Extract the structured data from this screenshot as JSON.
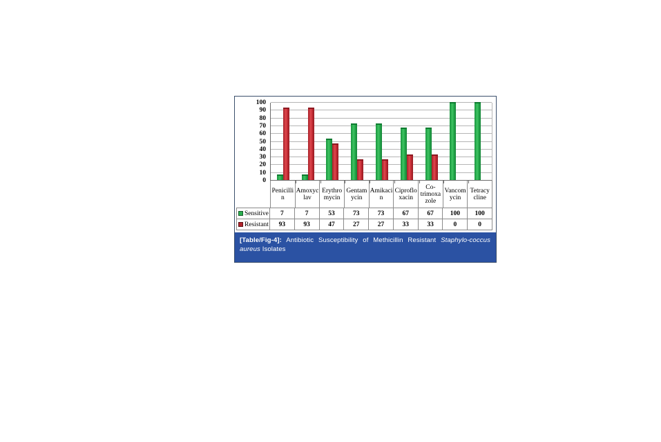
{
  "figure": {
    "caption": {
      "tag": "[Table/Fig-4]:",
      "text": "Antibiotic Susceptibility of Methicillin Resistant",
      "organism_italic": "Staphylo-coccus aureus",
      "suffix": "Isolates"
    },
    "colors": {
      "caption_background": "#2b52a3",
      "figure_border": "#3a4e6b",
      "sensitive_green": "#2bb050",
      "resistant_red": "#b2242c",
      "gridline_gray": "#b5b5b5"
    }
  },
  "chart_data": {
    "type": "bar",
    "title": "",
    "xlabel": "",
    "ylabel": "",
    "categories": [
      "Penicillin",
      "Amoxyclav",
      "Erythromycin",
      "Gentamycin",
      "Amikacin",
      "Ciprofloxacin",
      "Co-trimoxazole",
      "Vancomycin",
      "Tetracycline"
    ],
    "category_label_lines": [
      [
        "Penicilli",
        "n"
      ],
      [
        "Amoxyc",
        "lav"
      ],
      [
        "Erythro",
        "mycin"
      ],
      [
        "Gentam",
        "ycin"
      ],
      [
        "Amikaci",
        "n"
      ],
      [
        "Ciproflo",
        "xacin"
      ],
      [
        "Co-",
        "trimoxa",
        "zole"
      ],
      [
        "Vancom",
        "ycin"
      ],
      [
        "Tetracy",
        "cline"
      ]
    ],
    "series": [
      {
        "name": "Sensitive",
        "color": "#2bb050",
        "values": [
          7,
          7,
          53,
          73,
          73,
          67,
          67,
          100,
          100
        ]
      },
      {
        "name": "Resistant",
        "color": "#b2242c",
        "values": [
          93,
          93,
          47,
          27,
          27,
          33,
          33,
          0,
          0
        ]
      }
    ],
    "ylim": [
      0,
      100
    ],
    "yticks": [
      0,
      10,
      20,
      30,
      40,
      50,
      60,
      70,
      80,
      90,
      100
    ],
    "grid": "horizontal",
    "legend_position": "data-table-left"
  }
}
